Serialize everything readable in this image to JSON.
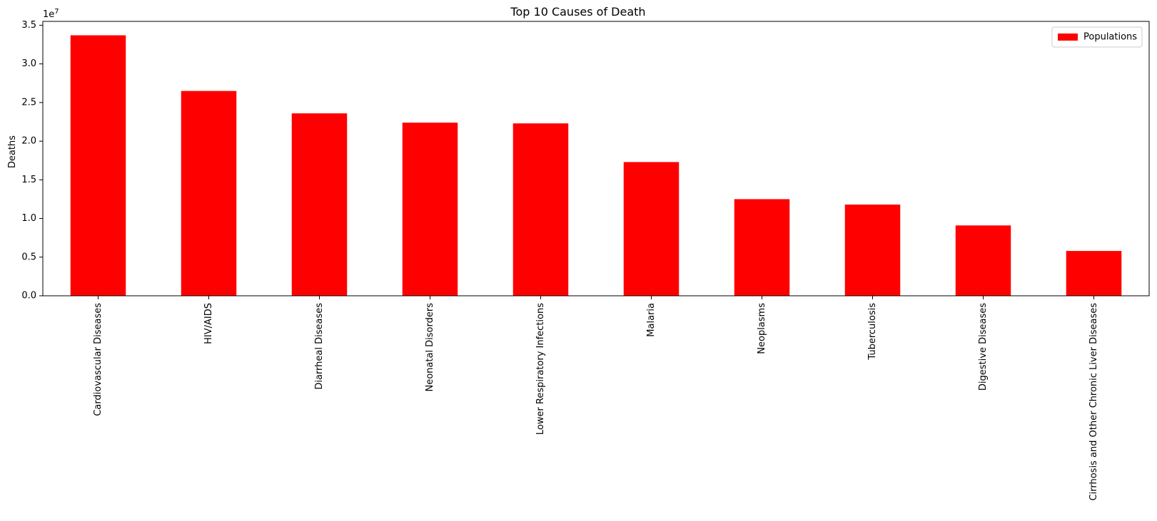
{
  "chart_data": {
    "type": "bar",
    "title": "Top 10 Causes of Death",
    "xlabel": "",
    "ylabel": "Deaths",
    "offset_label": "1e7",
    "categories": [
      "Cardiovascular Diseases",
      "HIV/AIDS",
      "Diarrheal Diseases",
      "Neonatal Disorders",
      "Lower Respiratory Infections",
      "Malaria",
      "Neoplasms",
      "Tuberculosis",
      "Digestive Diseases",
      "Cirrhosis and Other Chronic Liver Diseases"
    ],
    "series": [
      {
        "name": "Populations",
        "color": "#ff0000",
        "values": [
          33700000,
          26500000,
          23600000,
          22400000,
          22300000,
          17300000,
          12500000,
          11800000,
          9100000,
          5800000
        ]
      }
    ],
    "ylim": [
      0,
      35500000
    ],
    "yticks": [
      0,
      5000000,
      10000000,
      15000000,
      20000000,
      25000000,
      30000000,
      35000000
    ],
    "ytick_labels": [
      "0.0",
      "0.5",
      "1.0",
      "1.5",
      "2.0",
      "2.5",
      "3.0",
      "3.5"
    ],
    "grid": false,
    "legend_position": "top-right"
  }
}
